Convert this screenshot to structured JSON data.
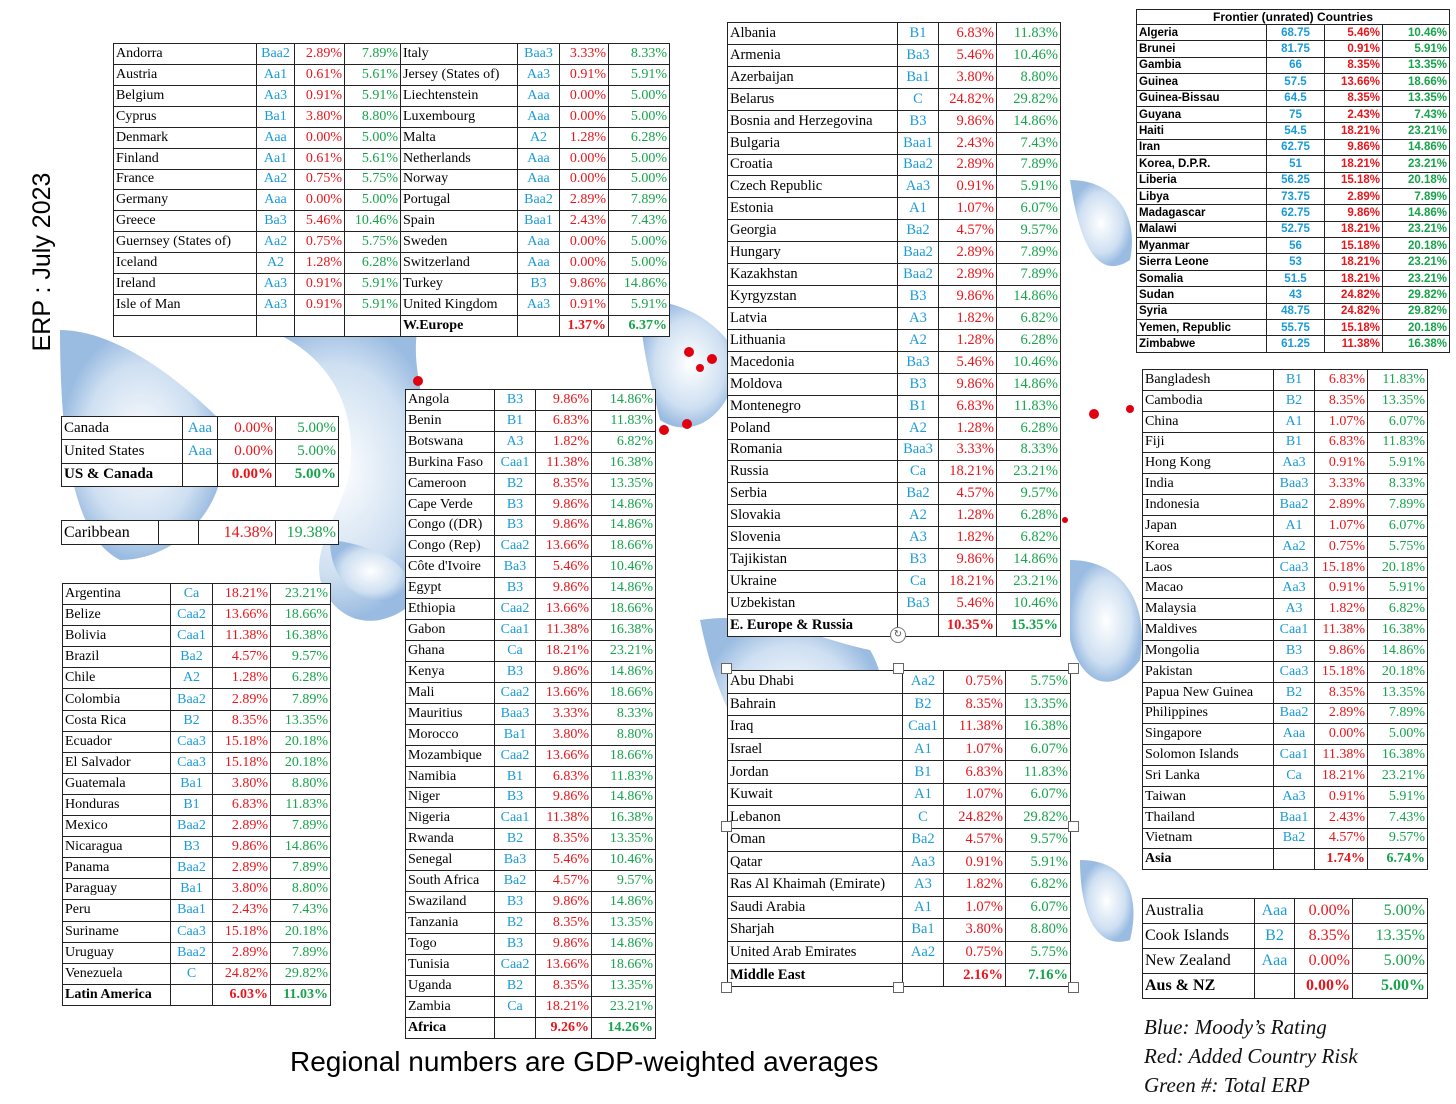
{
  "side_title": "ERP : July 2023",
  "footer": "Regional numbers are GDP-weighted averages",
  "legend": {
    "blue": "Blue: Moody’s Rating",
    "red": "Red: Added Country Risk",
    "green": "Green #: Total ERP"
  },
  "western_europe": {
    "left": [
      [
        "Andorra",
        "Baa2",
        "2.89%",
        "7.89%"
      ],
      [
        "Austria",
        "Aa1",
        "0.61%",
        "5.61%"
      ],
      [
        "Belgium",
        "Aa3",
        "0.91%",
        "5.91%"
      ],
      [
        "Cyprus",
        "Ba1",
        "3.80%",
        "8.80%"
      ],
      [
        "Denmark",
        "Aaa",
        "0.00%",
        "5.00%"
      ],
      [
        "Finland",
        "Aa1",
        "0.61%",
        "5.61%"
      ],
      [
        "France",
        "Aa2",
        "0.75%",
        "5.75%"
      ],
      [
        "Germany",
        "Aaa",
        "0.00%",
        "5.00%"
      ],
      [
        "Greece",
        "Ba3",
        "5.46%",
        "10.46%"
      ],
      [
        "Guernsey (States of)",
        "Aa2",
        "0.75%",
        "5.75%"
      ],
      [
        "Iceland",
        "A2",
        "1.28%",
        "6.28%"
      ],
      [
        "Ireland",
        "Aa3",
        "0.91%",
        "5.91%"
      ],
      [
        "Isle of Man",
        "Aa3",
        "0.91%",
        "5.91%"
      ],
      [
        "",
        "",
        "",
        ""
      ]
    ],
    "right": [
      [
        "Italy",
        "Baa3",
        "3.33%",
        "8.33%"
      ],
      [
        "Jersey (States of)",
        "Aa3",
        "0.91%",
        "5.91%"
      ],
      [
        "Liechtenstein",
        "Aaa",
        "0.00%",
        "5.00%"
      ],
      [
        "Luxembourg",
        "Aaa",
        "0.00%",
        "5.00%"
      ],
      [
        "Malta",
        "A2",
        "1.28%",
        "6.28%"
      ],
      [
        "Netherlands",
        "Aaa",
        "0.00%",
        "5.00%"
      ],
      [
        "Norway",
        "Aaa",
        "0.00%",
        "5.00%"
      ],
      [
        "Portugal",
        "Baa2",
        "2.89%",
        "7.89%"
      ],
      [
        "Spain",
        "Baa1",
        "2.43%",
        "7.43%"
      ],
      [
        "Sweden",
        "Aaa",
        "0.00%",
        "5.00%"
      ],
      [
        "Switzerland",
        "Aaa",
        "0.00%",
        "5.00%"
      ],
      [
        "Turkey",
        "B3",
        "9.86%",
        "14.86%"
      ],
      [
        "United Kingdom",
        "Aa3",
        "0.91%",
        "5.91%"
      ],
      [
        "W.Europe",
        "",
        "1.37%",
        "6.37%"
      ]
    ]
  },
  "us_canada": [
    [
      "Canada",
      "Aaa",
      "0.00%",
      "5.00%"
    ],
    [
      "United States",
      "Aaa",
      "0.00%",
      "5.00%"
    ],
    [
      "US & Canada",
      "",
      "0.00%",
      "5.00%"
    ]
  ],
  "caribbean": [
    [
      "Caribbean",
      "",
      "14.38%",
      "19.38%"
    ]
  ],
  "latin_america": [
    [
      "Argentina",
      "Ca",
      "18.21%",
      "23.21%"
    ],
    [
      "Belize",
      "Caa2",
      "13.66%",
      "18.66%"
    ],
    [
      "Bolivia",
      "Caa1",
      "11.38%",
      "16.38%"
    ],
    [
      "Brazil",
      "Ba2",
      "4.57%",
      "9.57%"
    ],
    [
      "Chile",
      "A2",
      "1.28%",
      "6.28%"
    ],
    [
      "Colombia",
      "Baa2",
      "2.89%",
      "7.89%"
    ],
    [
      "Costa Rica",
      "B2",
      "8.35%",
      "13.35%"
    ],
    [
      "Ecuador",
      "Caa3",
      "15.18%",
      "20.18%"
    ],
    [
      "El Salvador",
      "Caa3",
      "15.18%",
      "20.18%"
    ],
    [
      "Guatemala",
      "Ba1",
      "3.80%",
      "8.80%"
    ],
    [
      "Honduras",
      "B1",
      "6.83%",
      "11.83%"
    ],
    [
      "Mexico",
      "Baa2",
      "2.89%",
      "7.89%"
    ],
    [
      "Nicaragua",
      "B3",
      "9.86%",
      "14.86%"
    ],
    [
      "Panama",
      "Baa2",
      "2.89%",
      "7.89%"
    ],
    [
      "Paraguay",
      "Ba1",
      "3.80%",
      "8.80%"
    ],
    [
      "Peru",
      "Baa1",
      "2.43%",
      "7.43%"
    ],
    [
      "Suriname",
      "Caa3",
      "15.18%",
      "20.18%"
    ],
    [
      "Uruguay",
      "Baa2",
      "2.89%",
      "7.89%"
    ],
    [
      "Venezuela",
      "C",
      "24.82%",
      "29.82%"
    ],
    [
      "Latin America",
      "",
      "6.03%",
      "11.03%"
    ]
  ],
  "africa": [
    [
      "Angola",
      "B3",
      "9.86%",
      "14.86%"
    ],
    [
      "Benin",
      "B1",
      "6.83%",
      "11.83%"
    ],
    [
      "Botswana",
      "A3",
      "1.82%",
      "6.82%"
    ],
    [
      "Burkina Faso",
      "Caa1",
      "11.38%",
      "16.38%"
    ],
    [
      "Cameroon",
      "B2",
      "8.35%",
      "13.35%"
    ],
    [
      "Cape Verde",
      "B3",
      "9.86%",
      "14.86%"
    ],
    [
      "Congo ((DR)",
      "B3",
      "9.86%",
      "14.86%"
    ],
    [
      "Congo (Rep)",
      "Caa2",
      "13.66%",
      "18.66%"
    ],
    [
      "Côte d'Ivoire",
      "Ba3",
      "5.46%",
      "10.46%"
    ],
    [
      "Egypt",
      "B3",
      "9.86%",
      "14.86%"
    ],
    [
      "Ethiopia",
      "Caa2",
      "13.66%",
      "18.66%"
    ],
    [
      "Gabon",
      "Caa1",
      "11.38%",
      "16.38%"
    ],
    [
      "Ghana",
      "Ca",
      "18.21%",
      "23.21%"
    ],
    [
      "Kenya",
      "B3",
      "9.86%",
      "14.86%"
    ],
    [
      "Mali",
      "Caa2",
      "13.66%",
      "18.66%"
    ],
    [
      "Mauritius",
      "Baa3",
      "3.33%",
      "8.33%"
    ],
    [
      "Morocco",
      "Ba1",
      "3.80%",
      "8.80%"
    ],
    [
      "Mozambique",
      "Caa2",
      "13.66%",
      "18.66%"
    ],
    [
      "Namibia",
      "B1",
      "6.83%",
      "11.83%"
    ],
    [
      "Niger",
      "B3",
      "9.86%",
      "14.86%"
    ],
    [
      "Nigeria",
      "Caa1",
      "11.38%",
      "16.38%"
    ],
    [
      "Rwanda",
      "B2",
      "8.35%",
      "13.35%"
    ],
    [
      "Senegal",
      "Ba3",
      "5.46%",
      "10.46%"
    ],
    [
      "South Africa",
      "Ba2",
      "4.57%",
      "9.57%"
    ],
    [
      "Swaziland",
      "B3",
      "9.86%",
      "14.86%"
    ],
    [
      "Tanzania",
      "B2",
      "8.35%",
      "13.35%"
    ],
    [
      "Togo",
      "B3",
      "9.86%",
      "14.86%"
    ],
    [
      "Tunisia",
      "Caa2",
      "13.66%",
      "18.66%"
    ],
    [
      "Uganda",
      "B2",
      "8.35%",
      "13.35%"
    ],
    [
      "Zambia",
      "Ca",
      "18.21%",
      "23.21%"
    ],
    [
      "Africa",
      "",
      "9.26%",
      "14.26%"
    ]
  ],
  "eastern_europe": [
    [
      "Albania",
      "B1",
      "6.83%",
      "11.83%"
    ],
    [
      "Armenia",
      "Ba3",
      "5.46%",
      "10.46%"
    ],
    [
      "Azerbaijan",
      "Ba1",
      "3.80%",
      "8.80%"
    ],
    [
      "Belarus",
      "C",
      "24.82%",
      "29.82%"
    ],
    [
      "Bosnia and Herzegovina",
      "B3",
      "9.86%",
      "14.86%"
    ],
    [
      "Bulgaria",
      "Baa1",
      "2.43%",
      "7.43%"
    ],
    [
      "Croatia",
      "Baa2",
      "2.89%",
      "7.89%"
    ],
    [
      "Czech Republic",
      "Aa3",
      "0.91%",
      "5.91%"
    ],
    [
      "Estonia",
      "A1",
      "1.07%",
      "6.07%"
    ],
    [
      "Georgia",
      "Ba2",
      "4.57%",
      "9.57%"
    ],
    [
      "Hungary",
      "Baa2",
      "2.89%",
      "7.89%"
    ],
    [
      "Kazakhstan",
      "Baa2",
      "2.89%",
      "7.89%"
    ],
    [
      "Kyrgyzstan",
      "B3",
      "9.86%",
      "14.86%"
    ],
    [
      "Latvia",
      "A3",
      "1.82%",
      "6.82%"
    ],
    [
      "Lithuania",
      "A2",
      "1.28%",
      "6.28%"
    ],
    [
      "Macedonia",
      "Ba3",
      "5.46%",
      "10.46%"
    ],
    [
      "Moldova",
      "B3",
      "9.86%",
      "14.86%"
    ],
    [
      "Montenegro",
      "B1",
      "6.83%",
      "11.83%"
    ],
    [
      "Poland",
      "A2",
      "1.28%",
      "6.28%"
    ],
    [
      "Romania",
      "Baa3",
      "3.33%",
      "8.33%"
    ],
    [
      "Russia",
      "Ca",
      "18.21%",
      "23.21%"
    ],
    [
      "Serbia",
      "Ba2",
      "4.57%",
      "9.57%"
    ],
    [
      "Slovakia",
      "A2",
      "1.28%",
      "6.28%"
    ],
    [
      "Slovenia",
      "A3",
      "1.82%",
      "6.82%"
    ],
    [
      "Tajikistan",
      "B3",
      "9.86%",
      "14.86%"
    ],
    [
      "Ukraine",
      "Ca",
      "18.21%",
      "23.21%"
    ],
    [
      "Uzbekistan",
      "Ba3",
      "5.46%",
      "10.46%"
    ],
    [
      "E. Europe & Russia",
      "",
      "10.35%",
      "15.35%"
    ]
  ],
  "middle_east": [
    [
      "Abu Dhabi",
      "Aa2",
      "0.75%",
      "5.75%"
    ],
    [
      "Bahrain",
      "B2",
      "8.35%",
      "13.35%"
    ],
    [
      "Iraq",
      "Caa1",
      "11.38%",
      "16.38%"
    ],
    [
      "Israel",
      "A1",
      "1.07%",
      "6.07%"
    ],
    [
      "Jordan",
      "B1",
      "6.83%",
      "11.83%"
    ],
    [
      "Kuwait",
      "A1",
      "1.07%",
      "6.07%"
    ],
    [
      "Lebanon",
      "C",
      "24.82%",
      "29.82%"
    ],
    [
      "Oman",
      "Ba2",
      "4.57%",
      "9.57%"
    ],
    [
      "Qatar",
      "Aa3",
      "0.91%",
      "5.91%"
    ],
    [
      "Ras Al Khaimah (Emirate)",
      "A3",
      "1.82%",
      "6.82%"
    ],
    [
      "Saudi Arabia",
      "A1",
      "1.07%",
      "6.07%"
    ],
    [
      "Sharjah",
      "Ba1",
      "3.80%",
      "8.80%"
    ],
    [
      "United Arab Emirates",
      "Aa2",
      "0.75%",
      "5.75%"
    ],
    [
      "Middle East",
      "",
      "2.16%",
      "7.16%"
    ]
  ],
  "frontier": {
    "title": "Frontier (unrated) Countries",
    "rows": [
      [
        "Algeria",
        "68.75",
        "5.46%",
        "10.46%"
      ],
      [
        "Brunei",
        "81.75",
        "0.91%",
        "5.91%"
      ],
      [
        "Gambia",
        "66",
        "8.35%",
        "13.35%"
      ],
      [
        "Guinea",
        "57.5",
        "13.66%",
        "18.66%"
      ],
      [
        "Guinea-Bissau",
        "64.5",
        "8.35%",
        "13.35%"
      ],
      [
        "Guyana",
        "75",
        "2.43%",
        "7.43%"
      ],
      [
        "Haiti",
        "54.5",
        "18.21%",
        "23.21%"
      ],
      [
        "Iran",
        "62.75",
        "9.86%",
        "14.86%"
      ],
      [
        "Korea, D.P.R.",
        "51",
        "18.21%",
        "23.21%"
      ],
      [
        "Liberia",
        "56.25",
        "15.18%",
        "20.18%"
      ],
      [
        "Libya",
        "73.75",
        "2.89%",
        "7.89%"
      ],
      [
        "Madagascar",
        "62.75",
        "9.86%",
        "14.86%"
      ],
      [
        "Malawi",
        "52.75",
        "18.21%",
        "23.21%"
      ],
      [
        "Myanmar",
        "56",
        "15.18%",
        "20.18%"
      ],
      [
        "Sierra Leone",
        "53",
        "18.21%",
        "23.21%"
      ],
      [
        "Somalia",
        "51.5",
        "18.21%",
        "23.21%"
      ],
      [
        "Sudan",
        "43",
        "24.82%",
        "29.82%"
      ],
      [
        "Syria",
        "48.75",
        "24.82%",
        "29.82%"
      ],
      [
        "Yemen, Republic",
        "55.75",
        "15.18%",
        "20.18%"
      ],
      [
        "Zimbabwe",
        "61.25",
        "11.38%",
        "16.38%"
      ]
    ]
  },
  "asia": [
    [
      "Bangladesh",
      "B1",
      "6.83%",
      "11.83%"
    ],
    [
      "Cambodia",
      "B2",
      "8.35%",
      "13.35%"
    ],
    [
      "China",
      "A1",
      "1.07%",
      "6.07%"
    ],
    [
      "Fiji",
      "B1",
      "6.83%",
      "11.83%"
    ],
    [
      "Hong Kong",
      "Aa3",
      "0.91%",
      "5.91%"
    ],
    [
      "India",
      "Baa3",
      "3.33%",
      "8.33%"
    ],
    [
      "Indonesia",
      "Baa2",
      "2.89%",
      "7.89%"
    ],
    [
      "Japan",
      "A1",
      "1.07%",
      "6.07%"
    ],
    [
      "Korea",
      "Aa2",
      "0.75%",
      "5.75%"
    ],
    [
      "Laos",
      "Caa3",
      "15.18%",
      "20.18%"
    ],
    [
      "Macao",
      "Aa3",
      "0.91%",
      "5.91%"
    ],
    [
      "Malaysia",
      "A3",
      "1.82%",
      "6.82%"
    ],
    [
      "Maldives",
      "Caa1",
      "11.38%",
      "16.38%"
    ],
    [
      "Mongolia",
      "B3",
      "9.86%",
      "14.86%"
    ],
    [
      "Pakistan",
      "Caa3",
      "15.18%",
      "20.18%"
    ],
    [
      "Papua New Guinea",
      "B2",
      "8.35%",
      "13.35%"
    ],
    [
      "Philippines",
      "Baa2",
      "2.89%",
      "7.89%"
    ],
    [
      "Singapore",
      "Aaa",
      "0.00%",
      "5.00%"
    ],
    [
      "Solomon Islands",
      "Caa1",
      "11.38%",
      "16.38%"
    ],
    [
      "Sri Lanka",
      "Ca",
      "18.21%",
      "23.21%"
    ],
    [
      "Taiwan",
      "Aa3",
      "0.91%",
      "5.91%"
    ],
    [
      "Thailand",
      "Baa1",
      "2.43%",
      "7.43%"
    ],
    [
      "Vietnam",
      "Ba2",
      "4.57%",
      "9.57%"
    ],
    [
      "Asia",
      "",
      "1.74%",
      "6.74%"
    ]
  ],
  "aus_nz": [
    [
      "Australia",
      "Aaa",
      "0.00%",
      "5.00%"
    ],
    [
      "Cook Islands",
      "B2",
      "8.35%",
      "13.35%"
    ],
    [
      "New Zealand",
      "Aaa",
      "0.00%",
      "5.00%"
    ],
    [
      "Aus & NZ",
      "",
      "0.00%",
      "5.00%"
    ]
  ]
}
